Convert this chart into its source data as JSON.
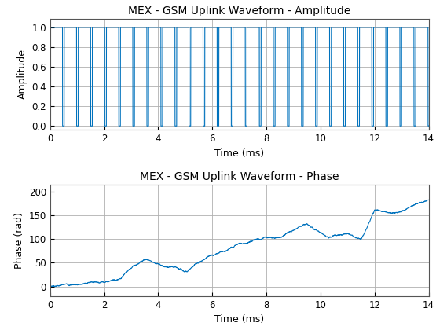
{
  "title_amp": "MEX - GSM Uplink Waveform - Amplitude",
  "title_phase": "MEX - GSM Uplink Waveform - Phase",
  "xlabel": "Time (ms)",
  "ylabel_amp": "Amplitude",
  "ylabel_phase": "Phase (rad)",
  "xlim": [
    0,
    14
  ],
  "amp_yticks": [
    0,
    0.2,
    0.4,
    0.6,
    0.8,
    1.0
  ],
  "phase_yticks": [
    0,
    50,
    100,
    150,
    200
  ],
  "xticks": [
    0,
    2,
    4,
    6,
    8,
    10,
    12,
    14
  ],
  "line_color": "#0072BD",
  "line_width": 0.8,
  "pulse_period": 0.52,
  "duty_cycle": 0.88,
  "total_time": 14.0,
  "background_color": "#ffffff",
  "grid_color": "#b0b0b0",
  "title_fontsize": 10,
  "label_fontsize": 9,
  "tick_fontsize": 8.5
}
